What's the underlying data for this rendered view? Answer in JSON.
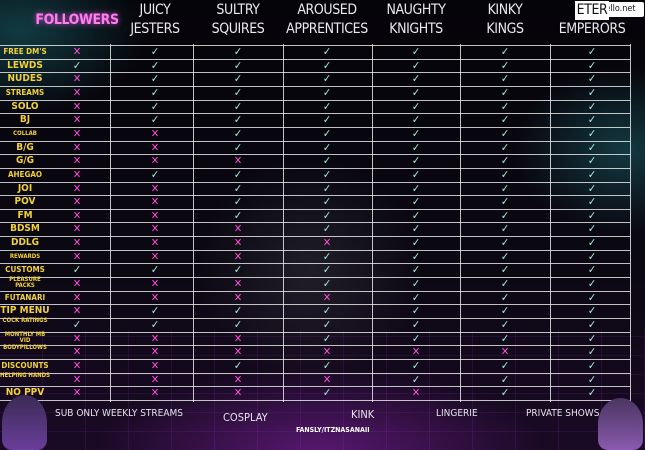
{
  "watermark": "fapello.net",
  "columns": [
    {
      "name": "followers",
      "line1": "FOLLOWERS",
      "line2": ""
    },
    {
      "name": "juicy-jesters",
      "line1": "JUICY",
      "line2": "JESTERS"
    },
    {
      "name": "sultry-squires",
      "line1": "SULTRY",
      "line2": "SQUIRES"
    },
    {
      "name": "aroused-apprentices",
      "line1": "AROUSED",
      "line2": "APPRENTICES"
    },
    {
      "name": "naughty-knights",
      "line1": "NAUGHTY",
      "line2": "KNIGHTS"
    },
    {
      "name": "kinky-kings",
      "line1": "KINKY",
      "line2": "KINGS"
    },
    {
      "name": "eternal-emperors",
      "line1": "ETER",
      "line2": "EMPERORS"
    }
  ],
  "rows": [
    {
      "label": "FREE DM'S",
      "size": "med",
      "cells": [
        "x",
        "v",
        "v",
        "v",
        "v",
        "v",
        "v"
      ]
    },
    {
      "label": "LEWDS",
      "size": "big",
      "cells": [
        "v",
        "v",
        "v",
        "v",
        "v",
        "v",
        "v"
      ]
    },
    {
      "label": "NUDES",
      "size": "big",
      "cells": [
        "x",
        "v",
        "v",
        "v",
        "v",
        "v",
        "v"
      ]
    },
    {
      "label": "STREAMS",
      "size": "med",
      "cells": [
        "x",
        "v",
        "v",
        "v",
        "v",
        "v",
        "v"
      ]
    },
    {
      "label": "SOLO",
      "size": "big",
      "cells": [
        "x",
        "v",
        "v",
        "v",
        "v",
        "v",
        "v"
      ]
    },
    {
      "label": "BJ",
      "size": "big",
      "cells": [
        "x",
        "v",
        "v",
        "v",
        "v",
        "v",
        "v"
      ]
    },
    {
      "label": "COLLAB",
      "size": "small",
      "cells": [
        "x",
        "x",
        "v",
        "v",
        "v",
        "v",
        "v"
      ]
    },
    {
      "label": "B/G",
      "size": "big",
      "cells": [
        "x",
        "x",
        "v",
        "v",
        "v",
        "v",
        "v"
      ]
    },
    {
      "label": "G/G",
      "size": "big",
      "cells": [
        "x",
        "x",
        "x",
        "v",
        "v",
        "v",
        "v"
      ]
    },
    {
      "label": "AHEGAO",
      "size": "med",
      "cells": [
        "x",
        "v",
        "v",
        "v",
        "v",
        "v",
        "v"
      ]
    },
    {
      "label": "JOI",
      "size": "big",
      "cells": [
        "x",
        "x",
        "v",
        "v",
        "v",
        "v",
        "v"
      ]
    },
    {
      "label": "POV",
      "size": "big",
      "cells": [
        "x",
        "x",
        "v",
        "v",
        "v",
        "v",
        "v"
      ]
    },
    {
      "label": "FM",
      "size": "big",
      "cells": [
        "x",
        "x",
        "v",
        "v",
        "v",
        "v",
        "v"
      ]
    },
    {
      "label": "BDSM",
      "size": "big",
      "cells": [
        "x",
        "x",
        "x",
        "v",
        "v",
        "v",
        "v"
      ]
    },
    {
      "label": "DDLG",
      "size": "big",
      "cells": [
        "x",
        "x",
        "x",
        "x",
        "v",
        "v",
        "v"
      ]
    },
    {
      "label": "REWARDS",
      "size": "small",
      "cells": [
        "x",
        "x",
        "x",
        "v",
        "v",
        "v",
        "v"
      ]
    },
    {
      "label": "CUSTOMS",
      "size": "med",
      "cells": [
        "v",
        "v",
        "v",
        "v",
        "v",
        "v",
        "v"
      ]
    },
    {
      "label": "PLEASURE PACKS",
      "size": "small",
      "cells": [
        "x",
        "x",
        "x",
        "v",
        "v",
        "v",
        "v"
      ]
    },
    {
      "label": "FUTANARI",
      "size": "med",
      "cells": [
        "x",
        "x",
        "x",
        "x",
        "v",
        "v",
        "v"
      ]
    },
    {
      "label": "TIP MENU",
      "size": "big",
      "cells": [
        "x",
        "v",
        "v",
        "v",
        "v",
        "v",
        "v"
      ]
    },
    {
      "label": "COCK RATINGS",
      "size": "small",
      "cells": [
        "v",
        "v",
        "v",
        "v",
        "v",
        "v",
        "v"
      ]
    },
    {
      "label": "MONTHLY MB VID",
      "size": "small",
      "cells": [
        "x",
        "x",
        "x",
        "v",
        "v",
        "v",
        "v"
      ]
    },
    {
      "label": "BODYPILLOWS",
      "size": "small",
      "cells": [
        "x",
        "x",
        "x",
        "x",
        "x",
        "x",
        "v"
      ]
    },
    {
      "label": "DISCOUNTS",
      "size": "med",
      "cells": [
        "x",
        "x",
        "v",
        "v",
        "v",
        "v",
        "v"
      ]
    },
    {
      "label": "HELPING HANDS",
      "size": "small",
      "cells": [
        "x",
        "x",
        "x",
        "x",
        "v",
        "v",
        "v"
      ]
    },
    {
      "label": "NO PPV",
      "size": "big",
      "cells": [
        "x",
        "x",
        "x",
        "v",
        "x",
        "v",
        "v"
      ]
    }
  ],
  "symbols": {
    "v": "✓",
    "x": "✕"
  },
  "footer": [
    {
      "name": "sub-only",
      "text": "SUB ONLY"
    },
    {
      "name": "weekly-streams",
      "text": "WEEKLY STREAMS"
    },
    {
      "name": "cosplay",
      "text": "COSPLAY"
    },
    {
      "name": "kink",
      "text": "KINK"
    },
    {
      "name": "lingerie",
      "text": "LINGERIE"
    },
    {
      "name": "private-shows",
      "text": "PRIVATE SHOWS"
    }
  ],
  "handle": "FANSLY/ITZNASANAII",
  "colors": {
    "check": "#a9f0dd",
    "cross": "#ff4fd8",
    "label": "#f2d23a",
    "header_highlight": "#ff7df0"
  }
}
